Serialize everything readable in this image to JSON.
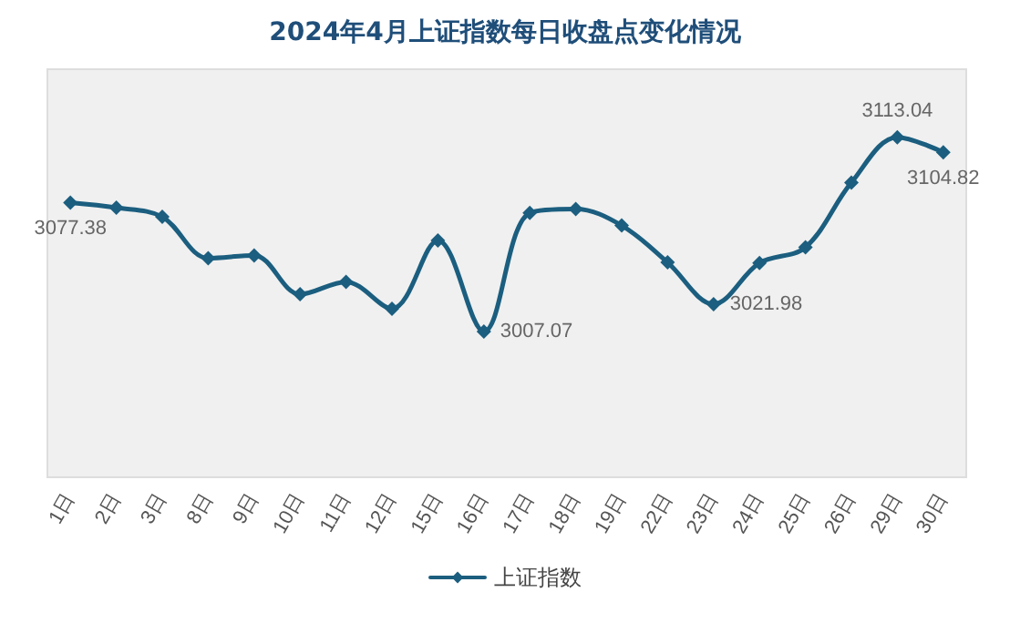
{
  "chart_data": {
    "type": "line",
    "title": "2024年4月上证指数每日收盘点变化情况",
    "categories": [
      "1日",
      "2日",
      "3日",
      "8日",
      "9日",
      "10日",
      "11日",
      "12日",
      "15日",
      "16日",
      "17日",
      "18日",
      "19日",
      "22日",
      "23日",
      "24日",
      "25日",
      "26日",
      "29日",
      "30日"
    ],
    "series": [
      {
        "name": "上证指数",
        "color": "#1b5e7f",
        "values": [
          3077.38,
          3074.6,
          3069.6,
          3047.1,
          3048.6,
          3027.4,
          3034.2,
          3019.5,
          3056.8,
          3007.07,
          3071.8,
          3073.9,
          3064.9,
          3044.8,
          3021.98,
          3044.5,
          3053.0,
          3088.3,
          3113.04,
          3104.82
        ],
        "value_labels": [
          "3077.38",
          null,
          null,
          null,
          null,
          null,
          null,
          null,
          null,
          "3007.07",
          null,
          null,
          null,
          null,
          "3021.98",
          null,
          null,
          null,
          "3113.04",
          "3104.82"
        ]
      }
    ],
    "grid": false,
    "legend": "bottom",
    "marker": "diamond",
    "line_style": "solid"
  }
}
